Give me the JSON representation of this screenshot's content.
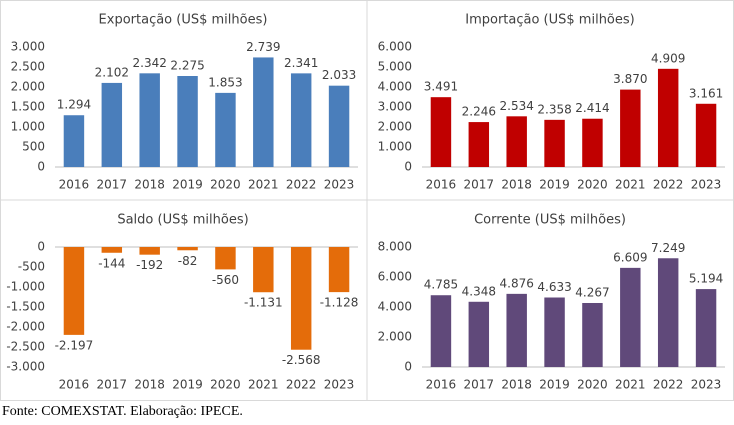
{
  "chart_data": [
    {
      "type": "bar",
      "title": "Exportação (US$ milhões)",
      "categories": [
        "2016",
        "2017",
        "2018",
        "2019",
        "2020",
        "2021",
        "2022",
        "2023"
      ],
      "values": [
        1294,
        2102,
        2342,
        2275,
        1853,
        2739,
        2341,
        2033
      ],
      "value_labels": [
        "1.294",
        "2.102",
        "2.342",
        "2.275",
        "1.853",
        "2.739",
        "2.341",
        "2.033"
      ],
      "color": "#4a7ebb",
      "ylim": [
        0,
        3000
      ],
      "yticks": [
        0,
        500,
        {
          "value": 1000,
          "label": "1.000"
        },
        {
          "value": 1500,
          "label": "1.500"
        },
        {
          "value": 2000,
          "label": "2.000"
        },
        {
          "value": 2500,
          "label": "2.500"
        },
        {
          "value": 3000,
          "label": "3.000"
        }
      ],
      "grid": false
    },
    {
      "type": "bar",
      "title": "Importação (US$ milhões)",
      "categories": [
        "2016",
        "2017",
        "2018",
        "2019",
        "2020",
        "2021",
        "2022",
        "2023"
      ],
      "values": [
        3491,
        2246,
        2534,
        2358,
        2414,
        3870,
        4909,
        3161
      ],
      "value_labels": [
        "3.491",
        "2.246",
        "2.534",
        "2.358",
        "2.414",
        "3.870",
        "4.909",
        "3.161"
      ],
      "color": "#c00000",
      "ylim": [
        0,
        6000
      ],
      "yticks": [
        0,
        {
          "value": 1000,
          "label": "1.000"
        },
        {
          "value": 2000,
          "label": "2.000"
        },
        {
          "value": 3000,
          "label": "3.000"
        },
        {
          "value": 4000,
          "label": "4.000"
        },
        {
          "value": 5000,
          "label": "5.000"
        },
        {
          "value": 6000,
          "label": "6.000"
        }
      ],
      "grid": false
    },
    {
      "type": "bar",
      "title": "Saldo (US$ milhões)",
      "categories": [
        "2016",
        "2017",
        "2018",
        "2019",
        "2020",
        "2021",
        "2022",
        "2023"
      ],
      "values": [
        -2197,
        -144,
        -192,
        -82,
        -560,
        -1131,
        -2568,
        -1128
      ],
      "value_labels": [
        "-2.197",
        "-144",
        "-192",
        "-82",
        "-560",
        "-1.131",
        "-2.568",
        "-1.128"
      ],
      "color": "#e46c0a",
      "ylim": [
        -3000,
        0
      ],
      "yticks": [
        0,
        -500,
        {
          "value": -1000,
          "label": "-1.000"
        },
        {
          "value": -1500,
          "label": "-1.500"
        },
        {
          "value": -2000,
          "label": "-2.000"
        },
        {
          "value": -2500,
          "label": "-2.500"
        },
        {
          "value": -3000,
          "label": "-3.000"
        }
      ],
      "grid": false
    },
    {
      "type": "bar",
      "title": "Corrente (US$ milhões)",
      "categories": [
        "2016",
        "2017",
        "2018",
        "2019",
        "2020",
        "2021",
        "2022",
        "2023"
      ],
      "values": [
        4785,
        4348,
        4876,
        4633,
        4267,
        6609,
        7249,
        5194
      ],
      "value_labels": [
        "4.785",
        "4.348",
        "4.876",
        "4.633",
        "4.267",
        "6.609",
        "7.249",
        "5.194"
      ],
      "color": "#60497a",
      "ylim": [
        0,
        8000
      ],
      "yticks": [
        0,
        {
          "value": 2000,
          "label": "2.000"
        },
        {
          "value": 4000,
          "label": "4.000"
        },
        {
          "value": 6000,
          "label": "6.000"
        },
        {
          "value": 8000,
          "label": "8.000"
        }
      ],
      "grid": false
    }
  ],
  "source": "Fonte: COMEXSTAT. Elaboração: IPECE."
}
